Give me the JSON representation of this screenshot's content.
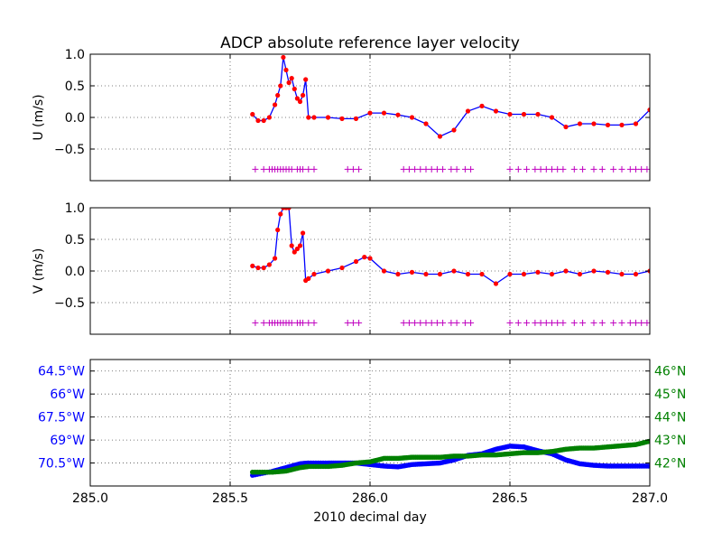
{
  "chart_data": [
    {
      "type": "scatter",
      "panel": "u",
      "title": "ADCP absolute reference layer velocity",
      "ylabel": "U (m/s)",
      "xlim": [
        285.0,
        287.0
      ],
      "ylim": [
        -1.0,
        1.0
      ],
      "yticks": [
        1.0,
        0.5,
        0.0,
        -0.5
      ],
      "ytick_labels": [
        "1.0",
        "0.5",
        "0.0",
        "−0.5"
      ],
      "xticks": [
        285.0,
        285.5,
        286.0,
        286.5,
        287.0
      ],
      "grid": true,
      "series": [
        {
          "style": "line",
          "color": "#0000ff",
          "x": [
            285.58,
            285.6,
            285.62,
            285.64,
            285.66,
            285.67,
            285.68,
            285.69,
            285.7,
            285.71,
            285.72,
            285.73,
            285.74,
            285.75,
            285.76,
            285.77,
            285.78,
            285.8,
            285.85,
            285.9,
            285.95,
            286.0,
            286.05,
            286.1,
            286.15,
            286.2,
            286.25,
            286.3,
            286.35,
            286.4,
            286.45,
            286.5,
            286.55,
            286.6,
            286.65,
            286.7,
            286.75,
            286.8,
            286.85,
            286.9,
            286.95,
            287.0
          ],
          "y": [
            0.05,
            -0.05,
            -0.05,
            0.0,
            0.2,
            0.35,
            0.5,
            0.95,
            0.75,
            0.55,
            0.62,
            0.45,
            0.3,
            0.25,
            0.35,
            0.6,
            0.0,
            0.0,
            0.0,
            -0.02,
            -0.02,
            0.07,
            0.07,
            0.04,
            0.0,
            -0.1,
            -0.3,
            -0.2,
            0.1,
            0.18,
            0.1,
            0.05,
            0.05,
            0.05,
            0.0,
            -0.15,
            -0.1,
            -0.1,
            -0.12,
            -0.12,
            -0.1,
            0.12
          ]
        },
        {
          "style": "points",
          "color": "#ff0000",
          "x": [
            285.58,
            285.6,
            285.62,
            285.64,
            285.66,
            285.67,
            285.68,
            285.69,
            285.7,
            285.71,
            285.72,
            285.73,
            285.74,
            285.75,
            285.76,
            285.77,
            285.78,
            285.8,
            285.85,
            285.9,
            285.95,
            286.0,
            286.05,
            286.1,
            286.15,
            286.2,
            286.25,
            286.3,
            286.35,
            286.4,
            286.45,
            286.5,
            286.55,
            286.6,
            286.65,
            286.7,
            286.75,
            286.8,
            286.85,
            286.9,
            286.95,
            287.0
          ],
          "y": [
            0.05,
            -0.05,
            -0.05,
            0.0,
            0.2,
            0.35,
            0.5,
            0.95,
            0.75,
            0.55,
            0.62,
            0.45,
            0.3,
            0.25,
            0.35,
            0.6,
            0.0,
            0.0,
            0.0,
            -0.02,
            -0.02,
            0.07,
            0.07,
            0.04,
            0.0,
            -0.1,
            -0.3,
            -0.2,
            0.1,
            0.18,
            0.1,
            0.05,
            0.05,
            0.05,
            0.0,
            -0.15,
            -0.1,
            -0.1,
            -0.12,
            -0.12,
            -0.1,
            0.12
          ]
        },
        {
          "style": "plus",
          "color": "#bf00bf",
          "y_value": -0.82,
          "x": [
            285.59,
            285.62,
            285.64,
            285.65,
            285.66,
            285.67,
            285.68,
            285.69,
            285.7,
            285.71,
            285.72,
            285.74,
            285.75,
            285.76,
            285.78,
            285.8,
            285.92,
            285.94,
            285.96,
            286.12,
            286.14,
            286.16,
            286.18,
            286.2,
            286.22,
            286.24,
            286.26,
            286.29,
            286.31,
            286.34,
            286.36,
            286.5,
            286.53,
            286.56,
            286.59,
            286.61,
            286.63,
            286.65,
            286.67,
            286.69,
            286.73,
            286.76,
            286.8,
            286.83,
            286.87,
            286.9,
            286.93,
            286.95,
            286.97,
            286.99
          ]
        }
      ]
    },
    {
      "type": "scatter",
      "panel": "v",
      "ylabel": "V (m/s)",
      "xlim": [
        285.0,
        287.0
      ],
      "ylim": [
        -1.0,
        1.0
      ],
      "yticks": [
        1.0,
        0.5,
        0.0,
        -0.5
      ],
      "ytick_labels": [
        "1.0",
        "0.5",
        "0.0",
        "−0.5"
      ],
      "xticks": [
        285.0,
        285.5,
        286.0,
        286.5,
        287.0
      ],
      "grid": true,
      "series": [
        {
          "style": "line",
          "color": "#0000ff",
          "x": [
            285.58,
            285.6,
            285.62,
            285.64,
            285.66,
            285.67,
            285.68,
            285.69,
            285.7,
            285.71,
            285.72,
            285.73,
            285.74,
            285.75,
            285.76,
            285.77,
            285.78,
            285.8,
            285.85,
            285.9,
            285.95,
            285.98,
            286.0,
            286.05,
            286.1,
            286.15,
            286.2,
            286.25,
            286.3,
            286.35,
            286.4,
            286.45,
            286.5,
            286.55,
            286.6,
            286.65,
            286.7,
            286.75,
            286.8,
            286.85,
            286.9,
            286.95,
            287.0
          ],
          "y": [
            0.08,
            0.05,
            0.05,
            0.1,
            0.2,
            0.65,
            0.9,
            1.0,
            1.0,
            1.0,
            0.4,
            0.3,
            0.35,
            0.4,
            0.6,
            -0.15,
            -0.12,
            -0.05,
            0.0,
            0.05,
            0.15,
            0.22,
            0.2,
            0.0,
            -0.05,
            -0.02,
            -0.05,
            -0.05,
            0.0,
            -0.05,
            -0.05,
            -0.2,
            -0.05,
            -0.05,
            -0.02,
            -0.05,
            0.0,
            -0.05,
            0.0,
            -0.02,
            -0.05,
            -0.05,
            0.0
          ]
        },
        {
          "style": "points",
          "color": "#ff0000",
          "x": [
            285.58,
            285.6,
            285.62,
            285.64,
            285.66,
            285.67,
            285.68,
            285.69,
            285.7,
            285.71,
            285.72,
            285.73,
            285.74,
            285.75,
            285.76,
            285.77,
            285.78,
            285.8,
            285.85,
            285.9,
            285.95,
            285.98,
            286.0,
            286.05,
            286.1,
            286.15,
            286.2,
            286.25,
            286.3,
            286.35,
            286.4,
            286.45,
            286.5,
            286.55,
            286.6,
            286.65,
            286.7,
            286.75,
            286.8,
            286.85,
            286.9,
            286.95,
            287.0
          ],
          "y": [
            0.08,
            0.05,
            0.05,
            0.1,
            0.2,
            0.65,
            0.9,
            1.0,
            1.0,
            1.0,
            0.4,
            0.3,
            0.35,
            0.4,
            0.6,
            -0.15,
            -0.12,
            -0.05,
            0.0,
            0.05,
            0.15,
            0.22,
            0.2,
            0.0,
            -0.05,
            -0.02,
            -0.05,
            -0.05,
            0.0,
            -0.05,
            -0.05,
            -0.2,
            -0.05,
            -0.05,
            -0.02,
            -0.05,
            0.0,
            -0.05,
            0.0,
            -0.02,
            -0.05,
            -0.05,
            0.0
          ]
        },
        {
          "style": "plus",
          "color": "#bf00bf",
          "y_value": -0.82,
          "x": [
            285.59,
            285.62,
            285.64,
            285.65,
            285.66,
            285.67,
            285.68,
            285.69,
            285.7,
            285.71,
            285.72,
            285.74,
            285.75,
            285.76,
            285.78,
            285.8,
            285.92,
            285.94,
            285.96,
            286.12,
            286.14,
            286.16,
            286.18,
            286.2,
            286.22,
            286.24,
            286.26,
            286.29,
            286.31,
            286.34,
            286.36,
            286.5,
            286.53,
            286.56,
            286.59,
            286.61,
            286.63,
            286.65,
            286.67,
            286.69,
            286.73,
            286.76,
            286.8,
            286.83,
            286.87,
            286.9,
            286.93,
            286.95,
            286.97,
            286.99
          ]
        }
      ]
    },
    {
      "type": "scatter",
      "panel": "position",
      "xlabel": "2010 decimal day",
      "xlim": [
        285.0,
        287.0
      ],
      "xticks": [
        285.0,
        285.5,
        286.0,
        286.5,
        287.0
      ],
      "xtick_labels": [
        "285.0",
        "285.5",
        "286.0",
        "286.5",
        "287.0"
      ],
      "grid": true,
      "left_axis": {
        "color": "#0000ff",
        "ylim": [
          -72.0,
          -63.75
        ],
        "yticks": [
          -64.5,
          -66.0,
          -67.5,
          -69.0,
          -70.5
        ],
        "ytick_labels": [
          "64.5°W",
          "66°W",
          "67.5°W",
          "69°W",
          "70.5°W"
        ]
      },
      "right_axis": {
        "color": "#008000",
        "ylim": [
          41.0,
          46.5
        ],
        "yticks": [
          46,
          45,
          44,
          43,
          42
        ],
        "ytick_labels": [
          "46°N",
          "45°N",
          "44°N",
          "43°N",
          "42°N"
        ]
      },
      "series": [
        {
          "axis": "left",
          "color": "#0000ff",
          "x": [
            285.58,
            285.65,
            285.7,
            285.75,
            285.78,
            285.85,
            285.9,
            285.95,
            286.0,
            286.05,
            286.1,
            286.15,
            286.2,
            286.25,
            286.3,
            286.35,
            286.4,
            286.45,
            286.5,
            286.55,
            286.6,
            286.65,
            286.7,
            286.75,
            286.8,
            286.85,
            286.9,
            286.95,
            287.0
          ],
          "y": [
            -71.3,
            -71.05,
            -70.8,
            -70.55,
            -70.5,
            -70.5,
            -70.5,
            -70.5,
            -70.6,
            -70.7,
            -70.75,
            -70.6,
            -70.55,
            -70.5,
            -70.3,
            -70.0,
            -69.9,
            -69.6,
            -69.4,
            -69.45,
            -69.7,
            -69.9,
            -70.3,
            -70.55,
            -70.65,
            -70.7,
            -70.7,
            -70.7,
            -70.7
          ]
        },
        {
          "axis": "right",
          "color": "#008000",
          "x": [
            285.58,
            285.65,
            285.7,
            285.75,
            285.78,
            285.85,
            285.9,
            285.95,
            286.0,
            286.05,
            286.1,
            286.15,
            286.2,
            286.25,
            286.3,
            286.35,
            286.4,
            286.45,
            286.5,
            286.55,
            286.6,
            286.65,
            286.7,
            286.75,
            286.8,
            286.85,
            286.9,
            286.95,
            287.0
          ],
          "y": [
            41.6,
            41.6,
            41.65,
            41.8,
            41.85,
            41.85,
            41.9,
            42.0,
            42.05,
            42.2,
            42.2,
            42.25,
            42.25,
            42.25,
            42.3,
            42.3,
            42.35,
            42.35,
            42.4,
            42.45,
            42.45,
            42.5,
            42.6,
            42.65,
            42.65,
            42.7,
            42.75,
            42.8,
            42.95
          ]
        }
      ]
    }
  ]
}
